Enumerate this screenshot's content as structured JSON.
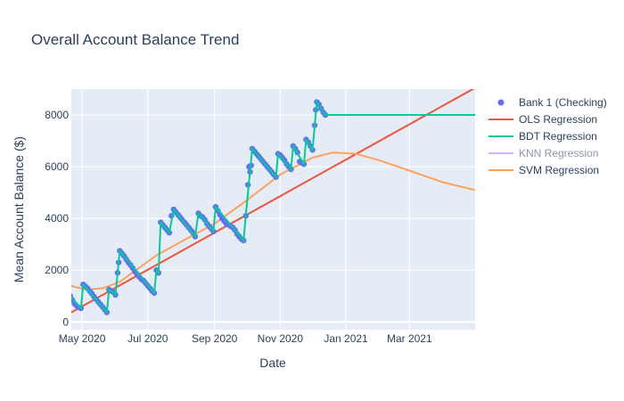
{
  "chart_data": {
    "type": "line",
    "title": "Overall Account Balance Trend",
    "xlabel": "Date",
    "ylabel": "Mean Account Balance ($)",
    "x_range": [
      "2020-04-21",
      "2021-05-01"
    ],
    "y_range": [
      -300,
      9000
    ],
    "x_ticks": [
      {
        "date": "2020-05-01",
        "label": "May 2020"
      },
      {
        "date": "2020-07-01",
        "label": "Jul 2020"
      },
      {
        "date": "2020-09-01",
        "label": "Sep 2020"
      },
      {
        "date": "2020-11-01",
        "label": "Nov 2020"
      },
      {
        "date": "2021-01-01",
        "label": "Jan 2021"
      },
      {
        "date": "2021-03-01",
        "label": "Mar 2021"
      }
    ],
    "y_ticks": [
      0,
      2000,
      4000,
      6000,
      8000
    ],
    "grid": true,
    "legend_position": "right",
    "colors": {
      "plot_bg": "#e5ecf6",
      "grid": "#ffffff",
      "scatter": "#636efa",
      "ols": "#ef553b",
      "bdt": "#00cc96",
      "knn": "#ab63fa",
      "svm": "#ffa15a"
    },
    "series": [
      {
        "name": "Bank 1 (Checking)",
        "kind": "markers",
        "points": [
          [
            "2020-04-20",
            1000
          ],
          [
            "2020-04-22",
            850
          ],
          [
            "2020-04-24",
            700
          ],
          [
            "2020-04-26",
            620
          ],
          [
            "2020-04-28",
            560
          ],
          [
            "2020-04-30",
            530
          ],
          [
            "2020-05-02",
            1450
          ],
          [
            "2020-05-04",
            1380
          ],
          [
            "2020-05-06",
            1300
          ],
          [
            "2020-05-08",
            1200
          ],
          [
            "2020-05-10",
            1100
          ],
          [
            "2020-05-12",
            980
          ],
          [
            "2020-05-14",
            880
          ],
          [
            "2020-05-16",
            780
          ],
          [
            "2020-05-18",
            680
          ],
          [
            "2020-05-20",
            580
          ],
          [
            "2020-05-22",
            480
          ],
          [
            "2020-05-24",
            370
          ],
          [
            "2020-05-26",
            1250
          ],
          [
            "2020-05-28",
            1200
          ],
          [
            "2020-05-30",
            1150
          ],
          [
            "2020-06-01",
            1050
          ],
          [
            "2020-06-03",
            1900
          ],
          [
            "2020-06-04",
            2300
          ],
          [
            "2020-06-05",
            2750
          ],
          [
            "2020-06-07",
            2650
          ],
          [
            "2020-06-09",
            2550
          ],
          [
            "2020-06-11",
            2420
          ],
          [
            "2020-06-13",
            2300
          ],
          [
            "2020-06-15",
            2200
          ],
          [
            "2020-06-17",
            2080
          ],
          [
            "2020-06-19",
            1950
          ],
          [
            "2020-06-21",
            1850
          ],
          [
            "2020-06-23",
            1750
          ],
          [
            "2020-06-25",
            1650
          ],
          [
            "2020-06-27",
            1600
          ],
          [
            "2020-06-29",
            1500
          ],
          [
            "2020-07-01",
            1400
          ],
          [
            "2020-07-03",
            1300
          ],
          [
            "2020-07-05",
            1200
          ],
          [
            "2020-07-07",
            1120
          ],
          [
            "2020-07-09",
            2000
          ],
          [
            "2020-07-11",
            1900
          ],
          [
            "2020-07-13",
            3850
          ],
          [
            "2020-07-15",
            3750
          ],
          [
            "2020-07-17",
            3650
          ],
          [
            "2020-07-19",
            3550
          ],
          [
            "2020-07-21",
            3450
          ],
          [
            "2020-07-23",
            4100
          ],
          [
            "2020-07-25",
            4350
          ],
          [
            "2020-07-27",
            4250
          ],
          [
            "2020-07-29",
            4150
          ],
          [
            "2020-07-31",
            4050
          ],
          [
            "2020-08-02",
            3950
          ],
          [
            "2020-08-04",
            3850
          ],
          [
            "2020-08-06",
            3750
          ],
          [
            "2020-08-08",
            3650
          ],
          [
            "2020-08-10",
            3550
          ],
          [
            "2020-08-12",
            3450
          ],
          [
            "2020-08-14",
            3300
          ],
          [
            "2020-08-17",
            4200
          ],
          [
            "2020-08-19",
            4100
          ],
          [
            "2020-08-21",
            4050
          ],
          [
            "2020-08-23",
            3950
          ],
          [
            "2020-08-25",
            3800
          ],
          [
            "2020-08-27",
            3700
          ],
          [
            "2020-08-29",
            3600
          ],
          [
            "2020-08-31",
            3500
          ],
          [
            "2020-09-02",
            4450
          ],
          [
            "2020-09-04",
            4300
          ],
          [
            "2020-09-06",
            4150
          ],
          [
            "2020-09-08",
            4000
          ],
          [
            "2020-09-10",
            3900
          ],
          [
            "2020-09-12",
            3800
          ],
          [
            "2020-09-14",
            3750
          ],
          [
            "2020-09-16",
            3700
          ],
          [
            "2020-09-18",
            3650
          ],
          [
            "2020-09-20",
            3550
          ],
          [
            "2020-09-22",
            3400
          ],
          [
            "2020-09-24",
            3300
          ],
          [
            "2020-09-26",
            3200
          ],
          [
            "2020-09-28",
            3150
          ],
          [
            "2020-09-30",
            4100
          ],
          [
            "2020-10-02",
            5300
          ],
          [
            "2020-10-03",
            6000
          ],
          [
            "2020-10-04",
            5800
          ],
          [
            "2020-10-05",
            6050
          ],
          [
            "2020-10-06",
            6700
          ],
          [
            "2020-10-08",
            6600
          ],
          [
            "2020-10-10",
            6500
          ],
          [
            "2020-10-12",
            6400
          ],
          [
            "2020-10-14",
            6300
          ],
          [
            "2020-10-16",
            6200
          ],
          [
            "2020-10-18",
            6100
          ],
          [
            "2020-10-20",
            6000
          ],
          [
            "2020-10-22",
            5900
          ],
          [
            "2020-10-24",
            5800
          ],
          [
            "2020-10-26",
            5700
          ],
          [
            "2020-10-28",
            5600
          ],
          [
            "2020-10-30",
            6500
          ],
          [
            "2020-11-01",
            6450
          ],
          [
            "2020-11-03",
            6350
          ],
          [
            "2020-11-05",
            6250
          ],
          [
            "2020-11-07",
            6100
          ],
          [
            "2020-11-09",
            6000
          ],
          [
            "2020-11-11",
            5900
          ],
          [
            "2020-11-13",
            6800
          ],
          [
            "2020-11-15",
            6700
          ],
          [
            "2020-11-17",
            6550
          ],
          [
            "2020-11-19",
            6200
          ],
          [
            "2020-11-21",
            6150
          ],
          [
            "2020-11-23",
            6100
          ],
          [
            "2020-11-25",
            7050
          ],
          [
            "2020-11-27",
            6950
          ],
          [
            "2020-11-29",
            6800
          ],
          [
            "2020-12-01",
            6650
          ],
          [
            "2020-12-03",
            7600
          ],
          [
            "2020-12-04",
            8200
          ],
          [
            "2020-12-05",
            8500
          ],
          [
            "2020-12-07",
            8400
          ],
          [
            "2020-12-09",
            8250
          ],
          [
            "2020-12-11",
            8100
          ],
          [
            "2020-12-13",
            8000
          ]
        ]
      },
      {
        "name": "OLS Regression",
        "kind": "line",
        "points": [
          [
            "2020-04-20",
            350
          ],
          [
            "2021-05-01",
            9050
          ]
        ]
      },
      {
        "name": "BDT Regression",
        "kind": "line",
        "points": [
          [
            "2020-04-20",
            1000
          ],
          [
            "2020-04-30",
            530
          ],
          [
            "2020-05-02",
            1450
          ],
          [
            "2020-05-24",
            370
          ],
          [
            "2020-05-26",
            1250
          ],
          [
            "2020-06-01",
            1050
          ],
          [
            "2020-06-05",
            2750
          ],
          [
            "2020-07-07",
            1120
          ],
          [
            "2020-07-09",
            2000
          ],
          [
            "2020-07-11",
            1900
          ],
          [
            "2020-07-13",
            3850
          ],
          [
            "2020-07-21",
            3450
          ],
          [
            "2020-07-25",
            4350
          ],
          [
            "2020-08-14",
            3300
          ],
          [
            "2020-08-17",
            4200
          ],
          [
            "2020-08-31",
            3500
          ],
          [
            "2020-09-02",
            4450
          ],
          [
            "2020-09-28",
            3150
          ],
          [
            "2020-09-30",
            4100
          ],
          [
            "2020-10-06",
            6700
          ],
          [
            "2020-10-28",
            5600
          ],
          [
            "2020-10-30",
            6500
          ],
          [
            "2020-11-11",
            5900
          ],
          [
            "2020-11-13",
            6800
          ],
          [
            "2020-11-23",
            6100
          ],
          [
            "2020-11-25",
            7050
          ],
          [
            "2020-12-01",
            6650
          ],
          [
            "2020-12-05",
            8500
          ],
          [
            "2020-12-13",
            8000
          ],
          [
            "2021-05-01",
            8000
          ]
        ]
      },
      {
        "name": "KNN Regression",
        "kind": "line",
        "visible": false,
        "points": []
      },
      {
        "name": "SVM Regression",
        "kind": "line",
        "points": [
          [
            "2020-04-20",
            1400
          ],
          [
            "2020-05-05",
            1250
          ],
          [
            "2020-05-20",
            1300
          ],
          [
            "2020-06-05",
            1550
          ],
          [
            "2020-06-20",
            2000
          ],
          [
            "2020-07-10",
            2600
          ],
          [
            "2020-08-01",
            3100
          ],
          [
            "2020-09-01",
            3800
          ],
          [
            "2020-10-01",
            4700
          ],
          [
            "2020-11-01",
            5700
          ],
          [
            "2020-12-01",
            6350
          ],
          [
            "2020-12-20",
            6550
          ],
          [
            "2021-01-10",
            6500
          ],
          [
            "2021-02-01",
            6250
          ],
          [
            "2021-03-01",
            5850
          ],
          [
            "2021-04-01",
            5400
          ],
          [
            "2021-05-01",
            5100
          ]
        ]
      }
    ]
  }
}
